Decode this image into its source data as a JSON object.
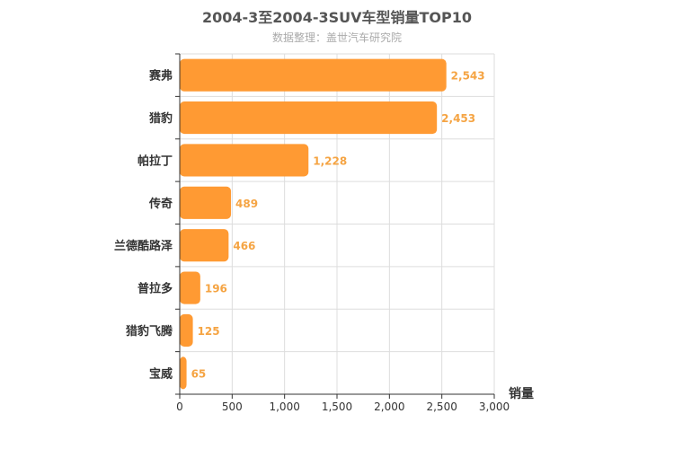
{
  "chart_data": {
    "type": "bar",
    "orientation": "horizontal",
    "title": "2004-3至2004-3SUV车型销量TOP10",
    "subtitle": "数据整理：盖世汽车研究院",
    "xlabel": "销量",
    "categories": [
      "赛弗",
      "猎豹",
      "帕拉丁",
      "传奇",
      "兰德酷路泽",
      "普拉多",
      "猎豹飞腾",
      "宝威"
    ],
    "values": [
      2543,
      2453,
      1228,
      489,
      466,
      196,
      125,
      65
    ],
    "value_labels": [
      "2,543",
      "2,453",
      "1,228",
      "489",
      "466",
      "196",
      "125",
      "65"
    ],
    "xlim": [
      0,
      3000
    ],
    "ticks": [
      0,
      500,
      1000,
      1500,
      2000,
      2500,
      3000
    ],
    "tick_labels": [
      "0",
      "500",
      "1,000",
      "1,500",
      "2,000",
      "2,500",
      "3,000"
    ],
    "grid": true,
    "bar_color": "#ff9a33",
    "label_color": "#f5a443"
  }
}
